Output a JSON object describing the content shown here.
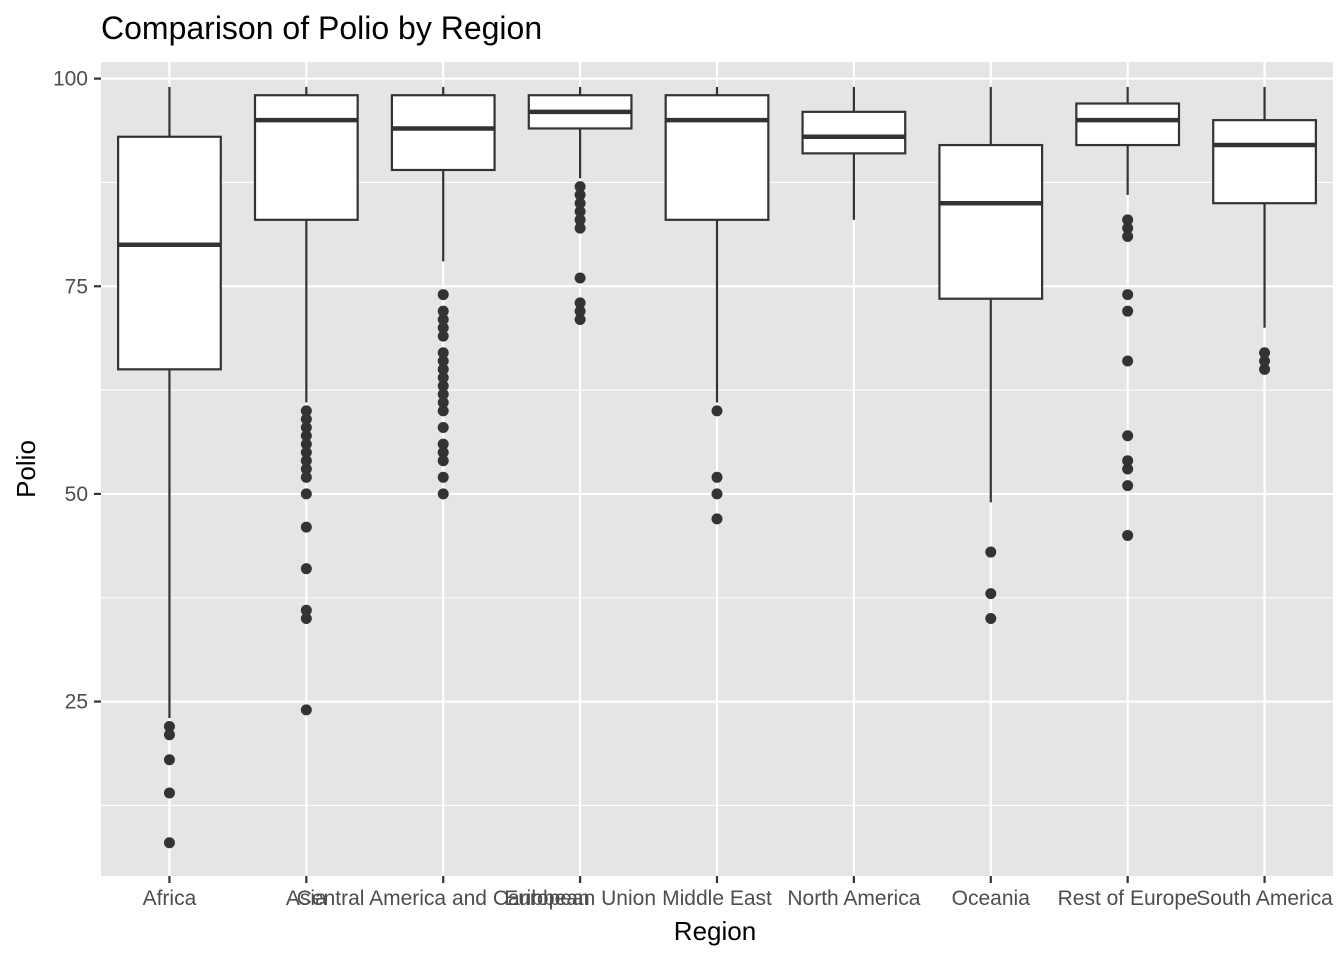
{
  "chart_data": {
    "type": "box",
    "title": "Comparison of Polio by Region",
    "xlabel": "Region",
    "ylabel": "Polio",
    "yticks": [
      25,
      50,
      75,
      100
    ],
    "ylim": [
      4,
      102
    ],
    "grid": true,
    "colors": {
      "panel": "#e5e5e5",
      "grid": "#ffffff",
      "box_fill": "#ffffff",
      "box_line": "#333333",
      "tick_text": "#4d4d4d"
    },
    "categories": [
      "Africa",
      "Asia",
      "Central America and Caribbean",
      "European Union",
      "Middle East",
      "North America",
      "Oceania",
      "Rest of Europe",
      "South America"
    ],
    "boxes": [
      {
        "category": "Africa",
        "min": 23,
        "q1": 65,
        "median": 80,
        "q3": 93,
        "max": 99,
        "outliers": [
          22,
          21,
          18,
          14,
          8
        ]
      },
      {
        "category": "Asia",
        "min": 61,
        "q1": 83,
        "median": 95,
        "q3": 98,
        "max": 99,
        "outliers": [
          60,
          59,
          58,
          57,
          56,
          55,
          54,
          53,
          52,
          50,
          46,
          41,
          36,
          35,
          24
        ]
      },
      {
        "category": "Central America and Caribbean",
        "min": 78,
        "q1": 89,
        "median": 94,
        "q3": 98,
        "max": 99,
        "outliers": [
          74,
          72,
          71,
          70,
          69,
          67,
          66,
          65,
          64,
          63,
          62,
          61,
          60,
          58,
          56,
          55,
          54,
          52,
          50
        ]
      },
      {
        "category": "European Union",
        "min": 88,
        "q1": 94,
        "median": 96,
        "q3": 98,
        "max": 99,
        "outliers": [
          87,
          86,
          85,
          84,
          83,
          82,
          76,
          73,
          72,
          71
        ]
      },
      {
        "category": "Middle East",
        "min": 61,
        "q1": 83,
        "median": 95,
        "q3": 98,
        "max": 99,
        "outliers": [
          60,
          52,
          50,
          47
        ]
      },
      {
        "category": "North America",
        "min": 83,
        "q1": 91,
        "median": 93,
        "q3": 96,
        "max": 99,
        "outliers": []
      },
      {
        "category": "Oceania",
        "min": 49,
        "q1": 73.5,
        "median": 85,
        "q3": 92,
        "max": 99,
        "outliers": [
          43,
          38,
          35
        ]
      },
      {
        "category": "Rest of Europe",
        "min": 86,
        "q1": 92,
        "median": 95,
        "q3": 97,
        "max": 99,
        "outliers": [
          83,
          82,
          81,
          74,
          72,
          66,
          57,
          54,
          53,
          51,
          45
        ]
      },
      {
        "category": "South America",
        "min": 70,
        "q1": 85,
        "median": 92,
        "q3": 95,
        "max": 99,
        "outliers": [
          67,
          66,
          65
        ]
      }
    ]
  }
}
